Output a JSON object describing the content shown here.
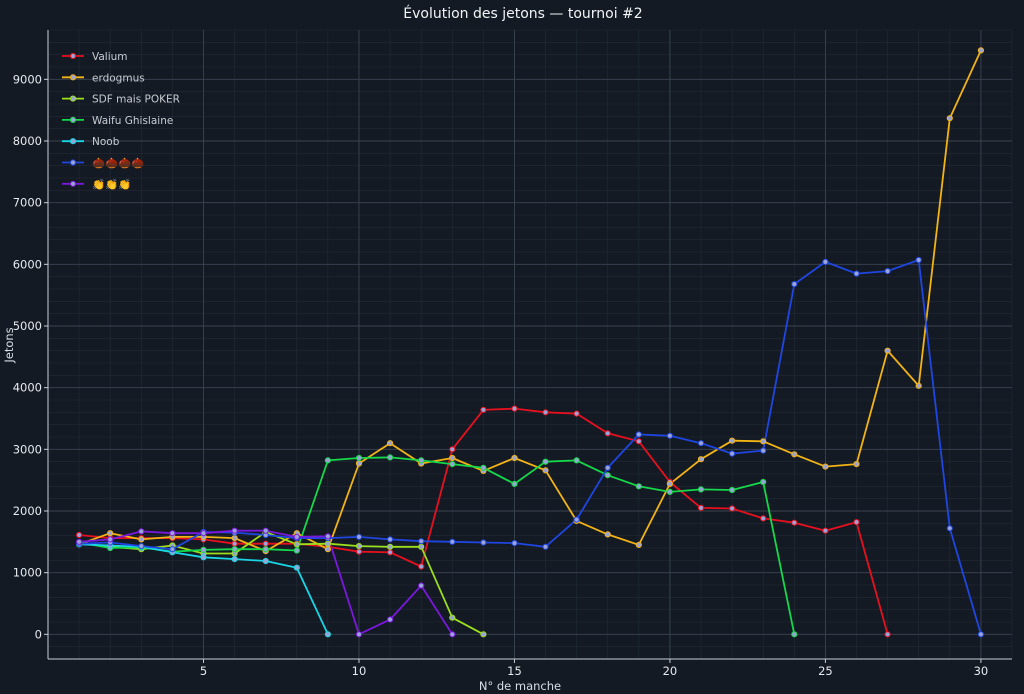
{
  "chart_data": {
    "type": "line",
    "title": "Évolution des jetons — tournoi #2",
    "xlabel": "N° de manche",
    "ylabel": "Jetons",
    "xlim": [
      0,
      31
    ],
    "ylim": [
      -400,
      9800
    ],
    "xticks": [
      5,
      10,
      15,
      20,
      25,
      30
    ],
    "yticks": [
      0,
      1000,
      2000,
      3000,
      4000,
      5000,
      6000,
      7000,
      8000,
      9000
    ],
    "grid": true,
    "legend_position": "top-left",
    "series": [
      {
        "name": "Valium",
        "color": "#e8101e",
        "x": [
          1,
          2,
          3,
          4,
          5,
          6,
          7,
          8,
          9,
          10,
          11,
          12,
          13,
          14,
          15,
          16,
          17,
          18,
          19,
          20,
          21,
          22,
          23,
          24,
          25,
          26,
          27
        ],
        "y": [
          1610,
          1560,
          1560,
          1560,
          1540,
          1470,
          1470,
          1470,
          1420,
          1340,
          1330,
          1100,
          3000,
          3640,
          3660,
          3600,
          3580,
          3260,
          3130,
          2470,
          2050,
          2040,
          1880,
          1810,
          1680,
          1820,
          0
        ]
      },
      {
        "name": "erdogmus",
        "color": "#f2b314",
        "x": [
          1,
          2,
          3,
          4,
          5,
          6,
          7,
          8,
          9,
          10,
          11,
          12,
          13,
          14,
          15,
          16,
          17,
          18,
          19,
          20,
          21,
          22,
          23,
          24,
          25,
          26,
          27,
          28,
          29,
          30
        ],
        "y": [
          1460,
          1640,
          1540,
          1580,
          1580,
          1560,
          1350,
          1640,
          1380,
          2770,
          3100,
          2770,
          2860,
          2650,
          2860,
          2660,
          1840,
          1620,
          1450,
          2440,
          2840,
          3140,
          3130,
          2920,
          2720,
          2760,
          4600,
          4030,
          8370,
          9470
        ]
      },
      {
        "name": "SDF mais POKER",
        "color": "#9be01a",
        "x": [
          1,
          2,
          3,
          4,
          5,
          6,
          7,
          8,
          9,
          10,
          11,
          12,
          13,
          14
        ],
        "y": [
          1480,
          1420,
          1380,
          1440,
          1310,
          1310,
          1660,
          1460,
          1470,
          1430,
          1420,
          1420,
          270,
          0
        ]
      },
      {
        "name": "Waifu Ghislaine",
        "color": "#15d84a",
        "x": [
          1,
          2,
          3,
          4,
          5,
          6,
          7,
          8,
          9,
          10,
          11,
          12,
          13,
          14,
          15,
          16,
          17,
          18,
          19,
          20,
          21,
          22,
          23,
          24
        ],
        "y": [
          1490,
          1400,
          1410,
          1340,
          1370,
          1380,
          1380,
          1360,
          2820,
          2860,
          2870,
          2820,
          2760,
          2700,
          2440,
          2800,
          2820,
          2580,
          2400,
          2310,
          2350,
          2340,
          2470,
          0
        ]
      },
      {
        "name": "Noob",
        "color": "#18d6e6",
        "x": [
          1,
          2,
          3,
          4,
          5,
          6,
          7,
          8,
          9
        ],
        "y": [
          1460,
          1440,
          1420,
          1330,
          1250,
          1220,
          1190,
          1080,
          0
        ]
      },
      {
        "name": "🌰🌰🌰🌰",
        "color": "#1f46e0",
        "x": [
          1,
          2,
          3,
          4,
          5,
          6,
          7,
          8,
          9,
          10,
          11,
          12,
          13,
          14,
          15,
          16,
          17,
          18,
          19,
          20,
          21,
          22,
          23,
          24,
          25,
          26,
          27,
          28,
          29,
          30
        ],
        "y": [
          1470,
          1490,
          1430,
          1380,
          1660,
          1650,
          1610,
          1560,
          1560,
          1580,
          1540,
          1510,
          1500,
          1490,
          1480,
          1420,
          1860,
          2700,
          3240,
          3220,
          3100,
          2930,
          2980,
          5680,
          6040,
          5850,
          5890,
          6070,
          1720,
          0
        ]
      },
      {
        "name": "👏👏👏",
        "color": "#7a18dc",
        "x": [
          1,
          2,
          3,
          4,
          5,
          6,
          7,
          8,
          9,
          10,
          11,
          12,
          13
        ],
        "y": [
          1500,
          1540,
          1670,
          1640,
          1640,
          1680,
          1680,
          1580,
          1590,
          0,
          240,
          790,
          0
        ]
      }
    ]
  }
}
